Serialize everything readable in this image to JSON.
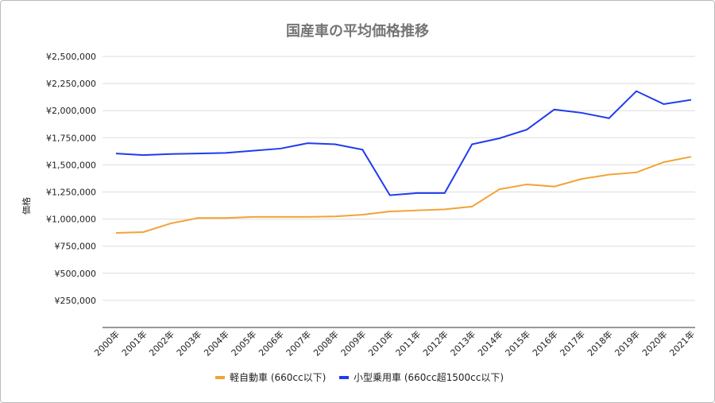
{
  "chart_data": {
    "type": "line",
    "title": "国産車の平均価格推移",
    "xlabel": "",
    "ylabel": "価格",
    "ylim": [
      0,
      2500000
    ],
    "yticks": [
      250000,
      500000,
      750000,
      1000000,
      1250000,
      1500000,
      1750000,
      2000000,
      2250000,
      2500000
    ],
    "ytick_labels": [
      "¥250,000",
      "¥500,000",
      "¥750,000",
      "¥1,000,000",
      "¥1,250,000",
      "¥1,500,000",
      "¥1,750,000",
      "¥2,000,000",
      "¥2,250,000",
      "¥2,500,000"
    ],
    "grid": true,
    "legend": "bottom",
    "categories": [
      "2000年",
      "2001年",
      "2002年",
      "2003年",
      "2004年",
      "2005年",
      "2006年",
      "2007年",
      "2008年",
      "2009年",
      "2010年",
      "2011年",
      "2012年",
      "2013年",
      "2014年",
      "2015年",
      "2016年",
      "2017年",
      "2018年",
      "2019年",
      "2020年",
      "2021年"
    ],
    "series": [
      {
        "name": "軽自動車 (660cc以下)",
        "color": "#f4a235",
        "values": [
          872000,
          880000,
          960000,
          1010000,
          1010000,
          1020000,
          1020000,
          1020000,
          1025000,
          1040000,
          1070000,
          1080000,
          1090000,
          1115000,
          1275000,
          1320000,
          1300000,
          1370000,
          1410000,
          1430000,
          1525000,
          1575000
        ]
      },
      {
        "name": "小型乗用車 (660cc超1500cc以下)",
        "color": "#1f3cf0",
        "values": [
          1605000,
          1590000,
          1600000,
          1605000,
          1610000,
          1630000,
          1650000,
          1700000,
          1690000,
          1640000,
          1220000,
          1240000,
          1240000,
          1690000,
          1745000,
          1825000,
          2010000,
          1980000,
          1930000,
          2180000,
          2060000,
          2100000
        ]
      }
    ]
  }
}
